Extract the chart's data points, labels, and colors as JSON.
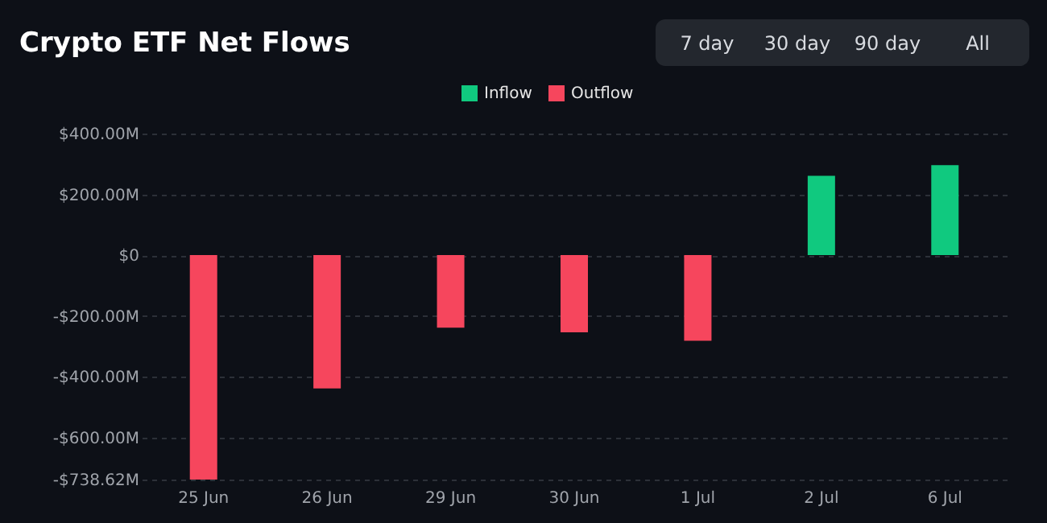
{
  "chart_data": {
    "type": "bar",
    "title": "Crypto ETF Net Flows",
    "categories": [
      "25 Jun",
      "26 Jun",
      "29 Jun",
      "30 Jun",
      "1 Jul",
      "2 Jul",
      "6 Jul"
    ],
    "series": [
      {
        "name": "Inflow",
        "color": "#10c97f",
        "values": [
          null,
          null,
          null,
          null,
          null,
          261,
          296
        ]
      },
      {
        "name": "Outflow",
        "color": "#f6465d",
        "values": [
          -738.62,
          -439,
          -239,
          -254,
          -282,
          null,
          null
        ]
      }
    ],
    "ylim": [
      -738.62,
      400
    ],
    "yticks": [
      {
        "value": 400,
        "label": "$400.00M"
      },
      {
        "value": 200,
        "label": "$200.00M"
      },
      {
        "value": 0,
        "label": "$0"
      },
      {
        "value": -200,
        "label": "-$200.00M"
      },
      {
        "value": -400,
        "label": "-$400.00M"
      },
      {
        "value": -600,
        "label": "-$600.00M"
      },
      {
        "value": -738.62,
        "label": "-$738.62M"
      }
    ],
    "grid": "y",
    "legend": "top",
    "annotations": [
      "7 day",
      "30 day",
      "90 day",
      "All"
    ]
  }
}
